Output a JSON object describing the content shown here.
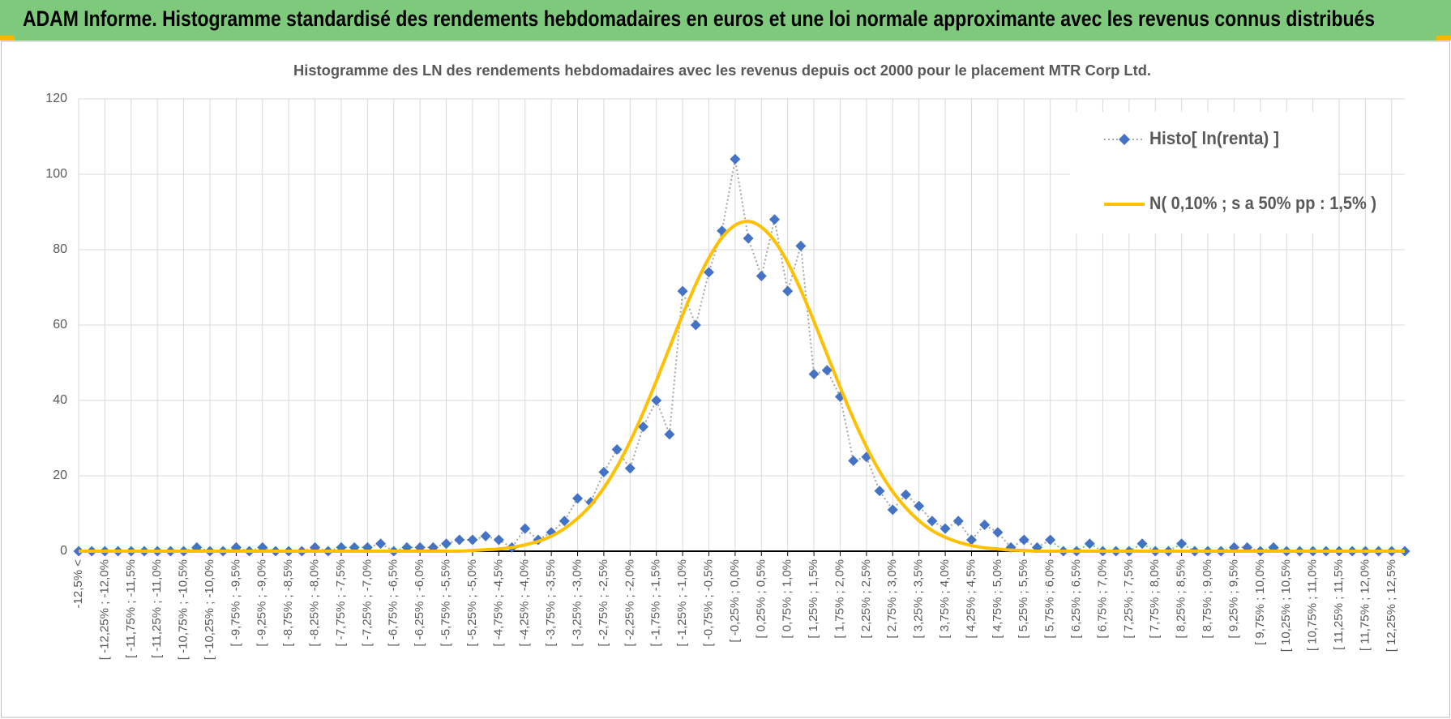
{
  "header": {
    "title": "ADAM Informe. Histogramme standardisé des rendements hebdomadaires en euros et une loi normale approximante avec les revenus connus distribués"
  },
  "chart_data": {
    "type": "line",
    "title": "Histogramme des LN des rendements hebdomadaires avec les revenus depuis oct 2000 pour le placement MTR Corp Ltd.",
    "categories": [
      "-12,5% <",
      null,
      "[ -12,25% ; -12,0%",
      null,
      "[ -11,75% ; -11,5%",
      null,
      "[ -11,25% ; -11,0%",
      null,
      "[ -10,75% ; -10,5%",
      null,
      "[ -10,25% ; -10,0%",
      null,
      "[ -9,75% ; -9,5%",
      null,
      "[ -9,25% ; -9,0%",
      null,
      "[ -8,75% ; -8,5%",
      null,
      "[ -8,25% ; -8,0%",
      null,
      "[ -7,75% ; -7,5%",
      null,
      "[ -7,25% ; -7,0%",
      null,
      "[ -6,75% ; -6,5%",
      null,
      "[ -6,25% ; -6,0%",
      null,
      "[ -5,75% ; -5,5%",
      null,
      "[ -5,25% ; -5,0%",
      null,
      "[ -4,75% ; -4,5%",
      null,
      "[ -4,25% ; -4,0%",
      null,
      "[ -3,75% ; -3,5%",
      null,
      "[ -3,25% ; -3,0%",
      null,
      "[ -2,75% ; -2,5%",
      null,
      "[ -2,25% ; -2,0%",
      null,
      "[ -1,75% ; -1,5%",
      null,
      "[ -1,25% ; -1,0%",
      null,
      "[ -0,75% ; -0,5%",
      null,
      "[ -0,25% ; 0,0%",
      null,
      "[ 0,25% ; 0,5%",
      null,
      "[ 0,75% ; 1,0%",
      null,
      "[ 1,25% ; 1,5%",
      null,
      "[ 1,75% ; 2,0%",
      null,
      "[ 2,25% ; 2,5%",
      null,
      "[ 2,75% ; 3,0%",
      null,
      "[ 3,25% ; 3,5%",
      null,
      "[ 3,75% ; 4,0%",
      null,
      "[ 4,25% ; 4,5%",
      null,
      "[ 4,75% ; 5,0%",
      null,
      "[ 5,25% ; 5,5%",
      null,
      "[ 5,75% ; 6,0%",
      null,
      "[ 6,25% ; 6,5%",
      null,
      "[ 6,75% ; 7,0%",
      null,
      "[ 7,25% ; 7,5%",
      null,
      "[ 7,75% ; 8,0%",
      null,
      "[ 8,25% ; 8,5%",
      null,
      "[ 8,75% ; 9,0%",
      null,
      "[ 9,25% ; 9,5%",
      null,
      "[ 9,75% ; 10,0%",
      null,
      "[ 10,25% ; 10,5%",
      null,
      "[ 10,75% ; 11,0%",
      null,
      "[ 11,25% ; 11,5%",
      null,
      "[ 11,75% ; 12,0%",
      null,
      "[ 12,25% ; 12,5%",
      null
    ],
    "series": [
      {
        "name": "Histo[ ln(renta) ]",
        "color": "#4472c4",
        "line_color": "#a6a6a6",
        "line_style": "dotted",
        "marker": "diamond",
        "values": [
          0,
          0,
          0,
          0,
          0,
          0,
          0,
          0,
          0,
          1,
          0,
          0,
          1,
          0,
          1,
          0,
          0,
          0,
          1,
          0,
          1,
          1,
          1,
          2,
          0,
          1,
          1,
          1,
          2,
          3,
          3,
          4,
          3,
          1,
          6,
          3,
          5,
          8,
          14,
          13,
          21,
          27,
          22,
          33,
          40,
          31,
          69,
          60,
          74,
          85,
          104,
          83,
          73,
          88,
          69,
          81,
          47,
          48,
          41,
          24,
          25,
          16,
          11,
          15,
          12,
          8,
          6,
          8,
          3,
          7,
          5,
          1,
          3,
          1,
          3,
          0,
          0,
          2,
          0,
          0,
          0,
          2,
          0,
          0,
          2,
          0,
          0,
          0,
          1,
          1,
          0,
          1,
          0,
          0,
          0,
          0,
          0,
          0,
          0,
          0,
          0,
          0
        ]
      },
      {
        "name": "N( 0,10% ; s a 50% pp : 1,5% )",
        "color": "#ffc000",
        "line_style": "solid",
        "marker": "none",
        "values": [
          0,
          0,
          0,
          0,
          0,
          0,
          0,
          0,
          0,
          0,
          0,
          0,
          0,
          0,
          0,
          0,
          0,
          0,
          0,
          0,
          0,
          0,
          0,
          0,
          0,
          0,
          0,
          0,
          0,
          0,
          0.2,
          0.4,
          0.6,
          1.0,
          1.7,
          2.6,
          4.0,
          6.0,
          8.7,
          12.2,
          16.8,
          22.4,
          29.1,
          36.8,
          45.2,
          54.0,
          62.7,
          70.8,
          77.8,
          83.2,
          86.5,
          87.5,
          86.0,
          82.3,
          76.6,
          69.3,
          61.0,
          52.2,
          43.5,
          35.2,
          27.7,
          21.2,
          15.8,
          11.5,
          8.1,
          5.5,
          3.7,
          2.4,
          1.5,
          0.9,
          0.6,
          0.3,
          0.2,
          0,
          0,
          0,
          0,
          0,
          0,
          0,
          0,
          0,
          0,
          0,
          0,
          0,
          0,
          0,
          0,
          0,
          0,
          0,
          0,
          0,
          0,
          0,
          0,
          0,
          0,
          0,
          0,
          0
        ]
      }
    ],
    "ylim": [
      0,
      120
    ],
    "yticks": [
      0,
      20,
      40,
      60,
      80,
      100,
      120
    ],
    "grid": true,
    "legend_position": "top-right"
  }
}
